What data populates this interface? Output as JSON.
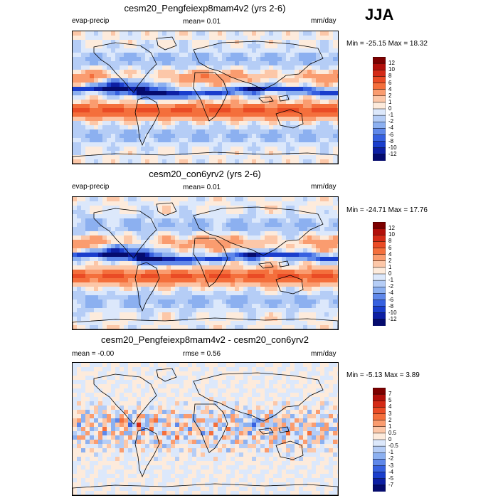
{
  "season": "JJA",
  "panels": [
    {
      "title": "cesm20_Pengfeiexp8mam4v2 (yrs 2-6)",
      "left_label": "evap-precip",
      "center_label": "mean=  0.01",
      "right_label": "mm/day",
      "minmax": "Min = -25.15 Max =  18.32",
      "levels": [
        "12",
        "10",
        "8",
        "6",
        "4",
        "2",
        "1",
        "0",
        "-1",
        "-2",
        "-4",
        "-6",
        "-8",
        "-10",
        "-12"
      ],
      "colors": [
        "#7d0000",
        "#b20f0a",
        "#d42a16",
        "#ea4b25",
        "#f46f3c",
        "#fa9c6f",
        "#fcc7a8",
        "#fdebdc",
        "#dce8fb",
        "#b5cdf6",
        "#8cb0f0",
        "#5f88ea",
        "#3761e0",
        "#1a3ecc",
        "#0d1fa3",
        "#050b6e"
      ]
    },
    {
      "title": "cesm20_con6yrv2 (yrs 2-6)",
      "left_label": "evap-precip",
      "center_label": "mean=  0.01",
      "right_label": "mm/day",
      "minmax": "Min = -24.71 Max =  17.76",
      "levels": [
        "12",
        "10",
        "8",
        "6",
        "4",
        "2",
        "1",
        "0",
        "-1",
        "-2",
        "-4",
        "-6",
        "-8",
        "-10",
        "-12"
      ],
      "colors": [
        "#7d0000",
        "#b20f0a",
        "#d42a16",
        "#ea4b25",
        "#f46f3c",
        "#fa9c6f",
        "#fcc7a8",
        "#fdebdc",
        "#dce8fb",
        "#b5cdf6",
        "#8cb0f0",
        "#5f88ea",
        "#3761e0",
        "#1a3ecc",
        "#0d1fa3",
        "#050b6e"
      ]
    },
    {
      "title": "cesm20_Pengfeiexp8mam4v2 - cesm20_con6yrv2",
      "left_label": "mean =  -0.00",
      "center_label": "rmse =   0.56",
      "right_label": "mm/day",
      "minmax": "Min =  -5.13 Max =   3.89",
      "levels": [
        "7",
        "5",
        "4",
        "3",
        "2",
        "1",
        "0.5",
        "0",
        "-0.5",
        "-1",
        "-2",
        "-3",
        "-4",
        "-5",
        "-7"
      ],
      "colors": [
        "#7d0000",
        "#b20f0a",
        "#d42a16",
        "#ea4b25",
        "#f46f3c",
        "#fa9c6f",
        "#fcc7a8",
        "#fdebdc",
        "#dce8fb",
        "#b5cdf6",
        "#8cb0f0",
        "#5f88ea",
        "#3761e0",
        "#1a3ecc",
        "#0d1fa3",
        "#050b6e"
      ]
    }
  ],
  "chart_data": {
    "type": "heatmap",
    "variable": "evap-precip",
    "units": "mm/day",
    "season": "JJA",
    "maps": [
      {
        "title": "cesm20_Pengfeiexp8mam4v2 (yrs 2-6)",
        "mean": 0.01,
        "min": -25.15,
        "max": 18.32,
        "contour_levels": [
          -12,
          -10,
          -8,
          -6,
          -4,
          -2,
          -1,
          0,
          1,
          2,
          4,
          6,
          8,
          10,
          12
        ]
      },
      {
        "title": "cesm20_con6yrv2 (yrs 2-6)",
        "mean": 0.01,
        "min": -24.71,
        "max": 17.76,
        "contour_levels": [
          -12,
          -10,
          -8,
          -6,
          -4,
          -2,
          -1,
          0,
          1,
          2,
          4,
          6,
          8,
          10,
          12
        ]
      },
      {
        "title": "cesm20_Pengfeiexp8mam4v2 - cesm20_con6yrv2",
        "mean": -0.0,
        "rmse": 0.56,
        "min": -5.13,
        "max": 3.89,
        "contour_levels": [
          -7,
          -5,
          -4,
          -3,
          -2,
          -1,
          -0.5,
          0,
          0.5,
          1,
          2,
          3,
          4,
          5,
          7
        ]
      }
    ]
  }
}
